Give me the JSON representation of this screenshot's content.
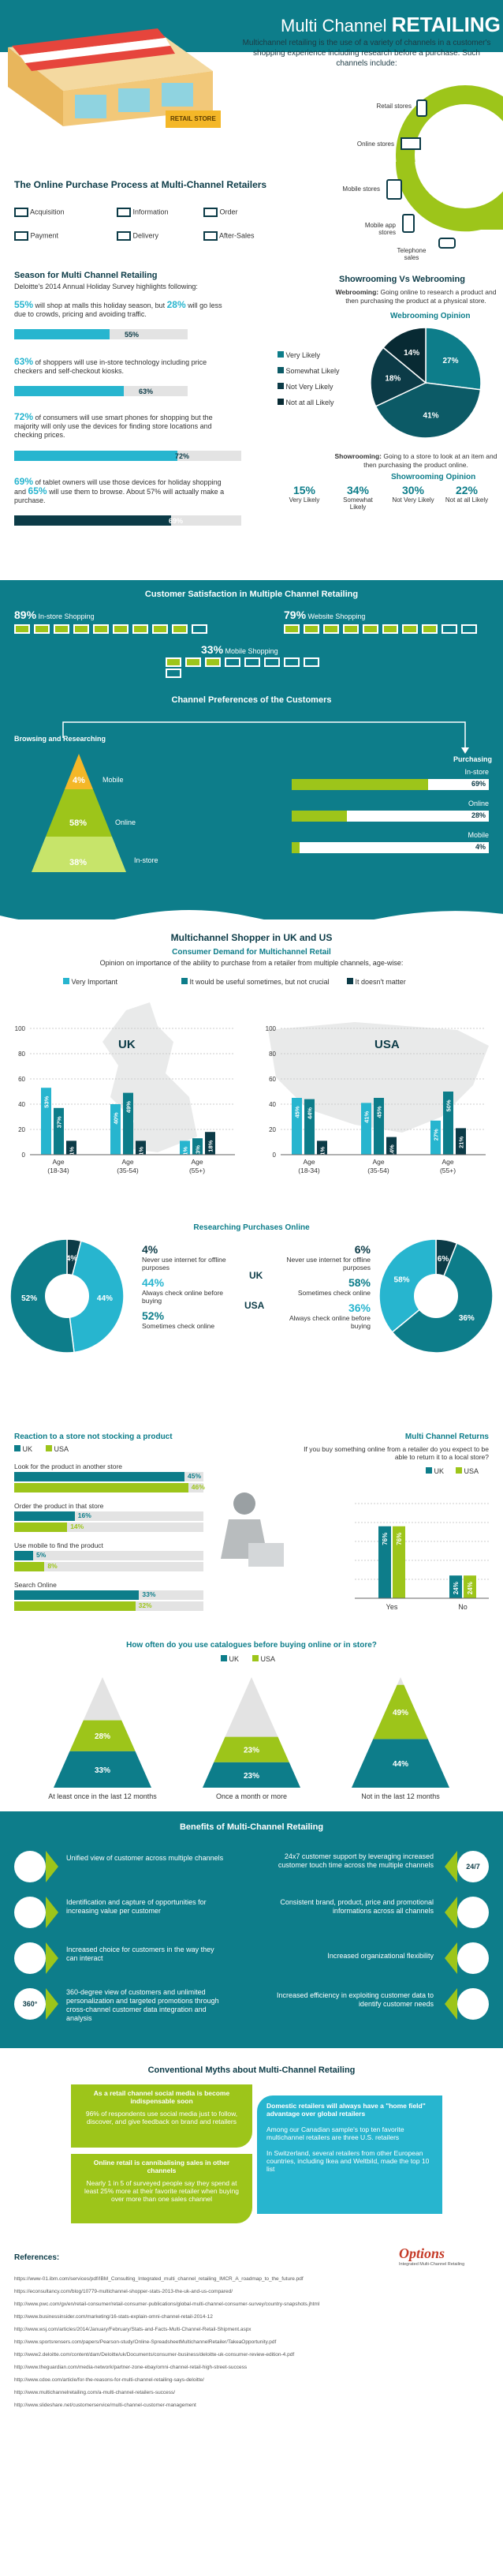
{
  "colors": {
    "teal": "#0d7d8a",
    "dark": "#0c3b47",
    "sky": "#27b5cf",
    "lime": "#9dc51a",
    "grey": "#e3e3e3"
  },
  "header": {
    "title_light": "Multi Channel ",
    "title_bold": "RETAILING",
    "intro": "Multichannel retailing is the use of a variety of channels in a customer's shopping experience including research before a purchase. Such channels include:",
    "store_sign": "RETAIL STORE",
    "channels": [
      "Retail stores",
      "Online stores",
      "Mobile stores",
      "Mobile app stores",
      "Telephone sales"
    ]
  },
  "process": {
    "title": "The Online Purchase Process at Multi-Channel Retailers",
    "steps": [
      "Acquisition",
      "Information",
      "Order",
      "Payment",
      "Delivery",
      "After-Sales"
    ]
  },
  "season": {
    "title": "Season for Multi Channel Retailing",
    "subtitle": "Deloitte's 2014 Annual Holiday Survey highlights following:",
    "items": [
      {
        "p1": "55%",
        "t1": " will shop at malls this holiday season, but ",
        "p2": "28%",
        "t2": " will go less due to crowds, pricing and avoiding traffic.",
        "value": 55,
        "label": "55%"
      },
      {
        "p1": "63%",
        "t1": " of shoppers will use in-store technology including price checkers and self-checkout kiosks.",
        "p2": "",
        "t2": "",
        "value": 63,
        "label": "63%"
      },
      {
        "p1": "72%",
        "t1": " of consumers will use smart phones for shopping but the majority will only use the devices for finding store locations and checking prices.",
        "p2": "",
        "t2": "",
        "value": 72,
        "label": "72%"
      },
      {
        "p1": "69%",
        "t1": " of tablet owners will use those devices for holiday shopping and ",
        "p2": "65%",
        "t2": " will use them to browse. About 57% will actually make a purchase.",
        "value": 69,
        "label": "69%"
      }
    ]
  },
  "showrooming": {
    "title": "Showrooming Vs Webrooming",
    "webrooming_def_b": "Webrooming:",
    "webrooming_def": " Going online to research a product and then purchasing the product at a physical store.",
    "opinion_title": "Webrooming Opinion",
    "legend": [
      "Very Likely",
      "Somewhat Likely",
      "Not Very Likely",
      "Not at all Likely"
    ],
    "pie_labels": [
      "27%",
      "41%",
      "18%",
      "14%"
    ],
    "showrooming_def_b": "Showrooming:",
    "showrooming_def": " Going to a store to look at an item and then purchasing the product online.",
    "opinion_title2": "Showrooming Opinion",
    "stats": [
      {
        "v": "15%",
        "l": "Very Likely"
      },
      {
        "v": "34%",
        "l": "Somewhat Likely"
      },
      {
        "v": "30%",
        "l": "Not Very Likely"
      },
      {
        "v": "22%",
        "l": "Not at all Likely"
      }
    ]
  },
  "satisfaction": {
    "title": "Customer Satisfaction in Multiple Channel Retailing",
    "items": [
      {
        "v": "89%",
        "l": "In-store Shopping"
      },
      {
        "v": "79%",
        "l": "Website Shopping"
      },
      {
        "v": "33%",
        "l": "Mobile Shopping"
      }
    ]
  },
  "preferences": {
    "title": "Channel Preferences of the Customers",
    "left_title": "Browsing and Researching",
    "right_title": "Purchasing",
    "levels": [
      {
        "v": "4%",
        "l": "Mobile"
      },
      {
        "v": "58%",
        "l": "Online"
      },
      {
        "v": "38%",
        "l": "In-store"
      }
    ],
    "bars": [
      {
        "l": "In-store",
        "v": "69%"
      },
      {
        "l": "Online",
        "v": "28%"
      },
      {
        "l": "Mobile",
        "v": "4%"
      }
    ]
  },
  "ukus": {
    "title": "Multichannel Shopper in UK and US",
    "subtitle": "Consumer Demand for Multichannel Retail",
    "question": "Opinion on importance of the ability to purchase from a retailer from multiple channels, age-wise:",
    "legend": [
      "Very Important",
      "It would be useful sometimes, but not crucial",
      "It doesn't matter"
    ],
    "uk_label": "UK",
    "us_label": "USA",
    "ticks": [
      "100",
      "80",
      "60",
      "40",
      "20",
      "0"
    ],
    "groups": [
      "Age (18-34)",
      "Age (35-54)",
      "Age (55+)"
    ]
  },
  "research": {
    "title": "Researching Purchases Online",
    "uk": "UK",
    "usa": "USA",
    "uk_pie": [
      "4%",
      "44%",
      "52%"
    ],
    "us_pie": [
      "6%",
      "36%",
      "58%"
    ],
    "uk_items": [
      {
        "v": "4%",
        "l": "Never use internet for offline purposes"
      },
      {
        "v": "44%",
        "l": "Always check online before buying"
      },
      {
        "v": "52%",
        "l": "Sometimes check online"
      }
    ],
    "us_items": [
      {
        "v": "6%",
        "l": "Never use internet for offline purposes"
      },
      {
        "v": "58%",
        "l": "Sometimes check online"
      },
      {
        "v": "36%",
        "l": "Always check online before buying"
      }
    ]
  },
  "stock": {
    "title": "Reaction to a store not stocking a product",
    "legend": [
      "UK",
      "USA"
    ],
    "items": [
      {
        "l": "Look for the product in another store",
        "uk": "45%",
        "us": "46%"
      },
      {
        "l": "Order the product in that store",
        "uk": "16%",
        "us": "14%"
      },
      {
        "l": "Use mobile to find the product",
        "uk": "5%",
        "us": "8%"
      },
      {
        "l": "Search Online",
        "uk": "33%",
        "us": "32%"
      }
    ]
  },
  "returns": {
    "title": "Multi Channel Returns",
    "question": "If you buy something online from a retailer do you expect to be able to return it to a local store?",
    "legend": [
      "UK",
      "USA"
    ],
    "cats": [
      "Yes",
      "No"
    ],
    "labels": [
      [
        "76%",
        "76%"
      ],
      [
        "24%",
        "24%"
      ]
    ]
  },
  "catalogue": {
    "title": "How often do you use catalogues before buying online or in store?",
    "legend": [
      "UK",
      "USA"
    ],
    "groups": [
      {
        "l": "At least once in the last 12 months",
        "uk": "33%",
        "us": "28%"
      },
      {
        "l": "Once a month or more",
        "uk": "23%",
        "us": "23%"
      },
      {
        "l": "Not in the last 12 months",
        "uk": "44%",
        "us": "49%"
      }
    ]
  },
  "benefits": {
    "title": "Benefits of Multi-Channel Retailing",
    "left": [
      "Unified view of customer across multiple channels",
      "Identification and capture of opportunities for increasing value per customer",
      "Increased choice for customers in the way they can interact",
      "360-degree view of customers and unlimited personalization and targeted promotions through cross-channel customer data integration and analysis"
    ],
    "right": [
      "24x7 customer support by leveraging increased customer touch time across the multiple channels",
      "Consistent brand, product, price and promotional informations across all channels",
      "Increased organizational flexibility",
      "Increased efficiency in exploiting customer data to identify customer needs"
    ],
    "icon_360": "360°",
    "icon_247": "24/7"
  },
  "myths": {
    "title": "Conventional Myths about Multi-Channel Retailing",
    "m1_head": "As a retail channel social media is become indispensable soon",
    "m1_body": "96% of respondents use social media just to follow, discover, and give feedback on brand and retailers",
    "m2_head": "Online retail is cannibalising sales in other channels",
    "m2_body": "Nearly 1 in 5 of surveyed people say they spend at least 25% more at their favorite retailer when buying over more than one sales channel",
    "m3_head": "Domestic retailers will always have a \"home field\" advantage over global retailers",
    "m3_body1": "Among our Canadian sample's top ten favorite multichannel retailers are three U.S. retailers",
    "m3_body2": "In Switzerland, several retailers from other European countries, including Ikea and Weltbild, made the top 10 list"
  },
  "references": {
    "title": "References:",
    "logo": "Options",
    "logo_sub": "Integrated Multi-Channel Retailing",
    "list": [
      "https://www-01.ibm.com/services/pdf/IBM_Consulting_Integrated_multi_channel_retailing_IMCR_A_roadmap_to_the_future.pdf",
      "https://econsultancy.com/blog/10779-multichannel-shopper-stats-2013-the-uk-and-us-compared/",
      "http://www.pwc.com/gx/en/retail-consumer/retail-consumer-publications/global-multi-channel-consumer-survey/country-snapshots.jhtml",
      "http://www.businessinsider.com/marketing/16-stats-explain-omni-channel-retail-2014-12",
      "http://www.wsj.com/articles/2014/January/February/Stats-and-Facts-Multi-Channel-Retail-Shipment.aspx",
      "http://www.sportsrensers.com/papers/Pearson-study/Online-SpreadsheetMultichannelRetailer/TakeaOpportunity.pdf",
      "http://www2.deloitte.com/content/dam/Deloitte/uk/Documents/consumer-business/deloitte-uk-consumer-review-edition-4.pdf",
      "http://www.theguardian.com/media-network/partner-zone-ebay/omni-channel-retail-high-street-success",
      "http://www.cdoe.com/article/for-the-reasons-for-multi-channel-retailing-says-deloitte/",
      "http://www.multichannelretailing.com/a-multi-channel-retailers-success/",
      "http://www.slideshare.net/customerservice/multi-channel-customer-management"
    ]
  },
  "chart_data": [
    {
      "type": "bar",
      "title": "Season for Multi Channel Retailing",
      "categories": [
        "Malls",
        "In-store technology",
        "Smart phones",
        "Tablets"
      ],
      "values": [
        55,
        63,
        72,
        69
      ],
      "ylim": [
        0,
        100
      ]
    },
    {
      "type": "pie",
      "title": "Webrooming Opinion",
      "categories": [
        "Very Likely",
        "Somewhat Likely",
        "Not Very Likely",
        "Not at all Likely"
      ],
      "values": [
        27,
        41,
        18,
        14
      ]
    },
    {
      "type": "bar",
      "title": "Showrooming Opinion",
      "categories": [
        "Very Likely",
        "Somewhat Likely",
        "Not Very Likely",
        "Not at all Likely"
      ],
      "values": [
        15,
        34,
        30,
        22
      ]
    },
    {
      "type": "bar",
      "title": "Customer Satisfaction in Multiple Channel Retailing",
      "categories": [
        "In-store Shopping",
        "Website Shopping",
        "Mobile Shopping"
      ],
      "values": [
        89,
        79,
        33
      ],
      "ylim": [
        0,
        100
      ]
    },
    {
      "type": "bar",
      "title": "Channel Preferences of the Customers",
      "categories": [
        "Mobile",
        "Online",
        "In-store"
      ],
      "series": [
        {
          "name": "Browsing and Researching",
          "values": [
            4,
            58,
            38
          ]
        },
        {
          "name": "Purchasing",
          "values": [
            4,
            28,
            69
          ]
        }
      ]
    },
    {
      "type": "bar",
      "title": "UK",
      "categories": [
        "Age (18-34)",
        "Age (35-54)",
        "Age (55+)"
      ],
      "series": [
        {
          "name": "Very Important",
          "values": [
            53,
            40,
            11
          ]
        },
        {
          "name": "It would be useful sometimes, but not crucial",
          "values": [
            37,
            49,
            13
          ]
        },
        {
          "name": "It doesn't matter",
          "values": [
            11,
            11,
            18
          ]
        }
      ],
      "ylim": [
        0,
        100
      ]
    },
    {
      "type": "bar",
      "title": "USA",
      "categories": [
        "Age (18-34)",
        "Age (35-54)",
        "Age (55+)"
      ],
      "series": [
        {
          "name": "Very Important",
          "values": [
            45,
            41,
            27
          ]
        },
        {
          "name": "It would be useful sometimes, but not crucial",
          "values": [
            44,
            45,
            50
          ]
        },
        {
          "name": "It doesn't matter",
          "values": [
            11,
            14,
            21
          ]
        }
      ],
      "ylim": [
        0,
        100
      ]
    },
    {
      "type": "pie",
      "title": "UK",
      "categories": [
        "Never use internet for offline purposes",
        "Always check online before buying",
        "Sometimes check online"
      ],
      "values": [
        4,
        44,
        52
      ]
    },
    {
      "type": "pie",
      "title": "USA",
      "categories": [
        "Never use internet for offline purposes",
        "Sometimes check online",
        "Always check online before buying"
      ],
      "values": [
        6,
        58,
        36
      ]
    },
    {
      "type": "bar",
      "title": "Reaction to a store not stocking a product",
      "categories": [
        "Look for the product in another store",
        "Order the product in that store",
        "Use mobile to find the product",
        "Search Online"
      ],
      "series": [
        {
          "name": "UK",
          "values": [
            45,
            16,
            5,
            33
          ]
        },
        {
          "name": "USA",
          "values": [
            46,
            14,
            8,
            32
          ]
        }
      ]
    },
    {
      "type": "bar",
      "title": "Multi Channel Returns",
      "categories": [
        "Yes",
        "No"
      ],
      "series": [
        {
          "name": "UK",
          "values": [
            76,
            24
          ]
        },
        {
          "name": "USA",
          "values": [
            76,
            24
          ]
        }
      ]
    },
    {
      "type": "bar",
      "title": "How often do you use catalogues before buying online or in store?",
      "categories": [
        "At least once in the last 12 months",
        "Once a month or more",
        "Not in the last 12 months"
      ],
      "series": [
        {
          "name": "UK",
          "values": [
            33,
            23,
            44
          ]
        },
        {
          "name": "USA",
          "values": [
            28,
            23,
            49
          ]
        }
      ]
    }
  ]
}
